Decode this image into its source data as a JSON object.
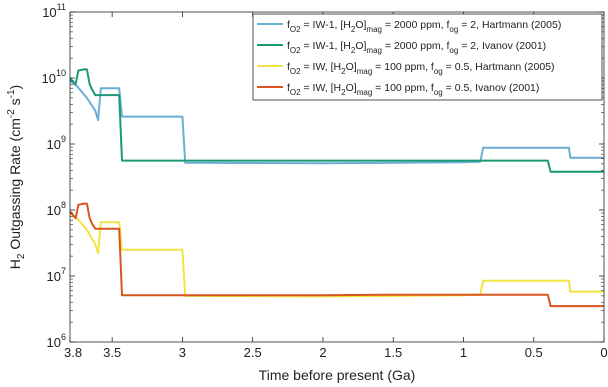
{
  "chart_data": {
    "type": "line",
    "xlabel": "Time before present (Ga)",
    "ylabel": {
      "base": "H",
      "sub": "2",
      "rest": " Outgassing Rate (cm",
      "sup1": "-2",
      "mid": " s",
      "sup2": "-1",
      "end": ")"
    },
    "xlim": [
      3.8,
      0
    ],
    "ylim": [
      1000000,
      100000000000
    ],
    "yscale": "log",
    "x_ticks": [
      3.8,
      3.5,
      3.0,
      2.5,
      2.0,
      1.5,
      1.0,
      0.5,
      0
    ],
    "x_tick_labels": [
      "3.8",
      "3.5",
      "3",
      "2.5",
      "2",
      "1.5",
      "1",
      "0.5",
      "0"
    ],
    "y_ticks": [
      1000000,
      10000000,
      100000000,
      1000000000,
      10000000000,
      100000000000
    ],
    "y_tick_labels": [
      {
        "base": "10",
        "exp": "6"
      },
      {
        "base": "10",
        "exp": "7"
      },
      {
        "base": "10",
        "exp": "8"
      },
      {
        "base": "10",
        "exp": "9"
      },
      {
        "base": "10",
        "exp": "10"
      },
      {
        "base": "10",
        "exp": "11"
      }
    ],
    "legend_position": "top-right",
    "series": [
      {
        "name": "fO2 = IW-1, [H2O]mag = 2000 ppm, fog = 2, Hartmann (2005)",
        "legend": {
          "o2": "IW-1",
          "h2o": "2000 ppm",
          "fog": "2",
          "src": "Hartmann (2005)"
        },
        "color": "#6baed6",
        "x": [
          3.8,
          3.75,
          3.68,
          3.62,
          3.6,
          3.58,
          3.5,
          3.45,
          3.43,
          3.0,
          2.98,
          2.0,
          1.0,
          0.88,
          0.86,
          0.25,
          0.24,
          0
        ],
        "y": [
          9000000000,
          7500000000,
          5000000000,
          3200000000,
          2300000000,
          7000000000,
          7000000000,
          7000000000,
          2600000000,
          2600000000,
          520000000,
          510000000,
          530000000,
          540000000,
          880000000,
          880000000,
          620000000,
          620000000
        ]
      },
      {
        "name": "fO2 = IW-1, [H2O]mag = 2000 ppm, fog = 2, Ivanov (2001)",
        "legend": {
          "o2": "IW-1",
          "h2o": "2000 ppm",
          "fog": "2",
          "src": "Ivanov (2001)"
        },
        "color": "#1a9a74",
        "x": [
          3.8,
          3.76,
          3.74,
          3.7,
          3.68,
          3.66,
          3.64,
          3.62,
          3.6,
          3.5,
          3.45,
          3.43,
          3.0,
          2.0,
          1.5,
          1.0,
          0.4,
          0.38,
          0
        ],
        "y": [
          10000000000,
          8000000000,
          13000000000,
          13500000000,
          13500000000,
          8000000000,
          6500000000,
          5500000000,
          5500000000,
          5500000000,
          5500000000,
          560000000,
          560000000,
          560000000,
          560000000,
          560000000,
          560000000,
          380000000,
          380000000
        ]
      },
      {
        "name": "fO2 = IW, [H2O]mag = 100 ppm, fog = 0.5, Hartmann (2005)",
        "legend": {
          "o2": "IW",
          "h2o": "100 ppm",
          "fog": "0.5",
          "src": "Hartmann (2005)"
        },
        "color": "#f0e442",
        "x": [
          3.8,
          3.75,
          3.68,
          3.62,
          3.6,
          3.58,
          3.5,
          3.45,
          3.43,
          3.0,
          2.98,
          2.0,
          1.0,
          0.88,
          0.86,
          0.25,
          0.24,
          0
        ],
        "y": [
          90000000,
          75000000,
          50000000,
          30000000,
          22000000,
          65000000,
          65000000,
          65000000,
          25000000,
          25000000,
          5000000,
          4900000,
          5100000,
          5200000,
          8500000,
          8500000,
          5800000,
          5800000
        ]
      },
      {
        "name": "fO2 = IW, [H2O]mag = 100 ppm, fog = 0.5, Ivanov (2001)",
        "legend": {
          "o2": "IW",
          "h2o": "100 ppm",
          "fog": "0.5",
          "src": "Ivanov (2001)"
        },
        "color": "#d9541e",
        "x": [
          3.8,
          3.76,
          3.74,
          3.7,
          3.68,
          3.66,
          3.64,
          3.62,
          3.6,
          3.5,
          3.45,
          3.43,
          3.0,
          2.0,
          1.5,
          1.0,
          0.4,
          0.38,
          0
        ],
        "y": [
          95000000,
          75000000,
          120000000,
          125000000,
          125000000,
          75000000,
          60000000,
          52000000,
          52000000,
          52000000,
          52000000,
          5100000,
          5100000,
          5100000,
          5200000,
          5200000,
          5200000,
          3500000,
          3500000
        ]
      }
    ]
  }
}
